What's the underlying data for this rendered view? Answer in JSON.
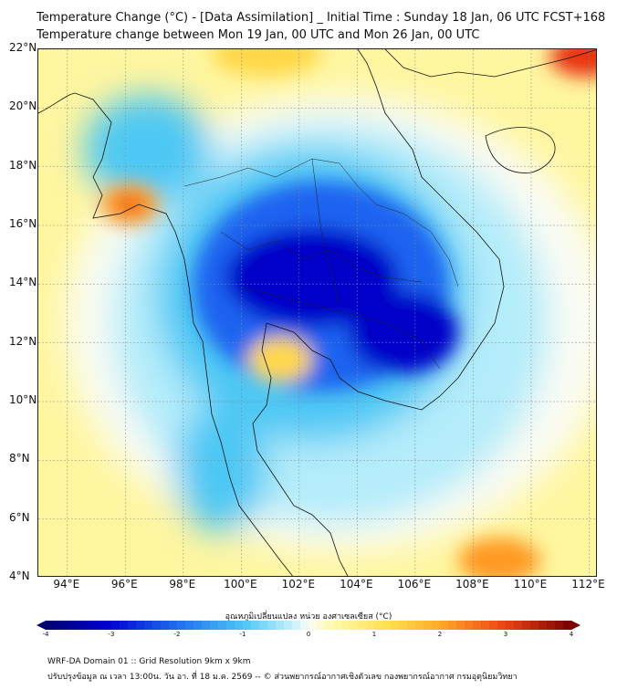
{
  "header": {
    "title_line1": "Temperature Change (°C) - [Data Assimilation] _ Initial Time : Sunday 18 Jan, 06 UTC FCST+168",
    "title_line2": "Temperature change between Mon 19 Jan, 00 UTC and Mon 26 Jan, 00 UTC"
  },
  "map": {
    "lat_labels": [
      "22°N",
      "20°N",
      "18°N",
      "16°N",
      "14°N",
      "12°N",
      "10°N",
      "8°N",
      "6°N",
      "4°N"
    ],
    "lon_labels": [
      "94°E",
      "96°E",
      "98°E",
      "100°E",
      "102°E",
      "104°E",
      "106°E",
      "108°E",
      "110°E",
      "112°E"
    ],
    "lat_range": [
      4,
      22
    ],
    "lon_range": [
      93,
      112.3
    ],
    "colors": {
      "dark_blue": "#0000c8",
      "blue": "#1e64f0",
      "cyan": "#4ec8f4",
      "light_cyan": "#b4ecfa",
      "white": "#fafcf4",
      "light_yellow": "#fff6a0",
      "yellow": "#ffd84a",
      "orange": "#ff9a20",
      "red": "#e83010"
    }
  },
  "colorbar": {
    "title": "อุณหภูมิเปลี่ยนแปลง หน่วย องศาเซลเซียส (°C)",
    "ticks": [
      "-4",
      "-3",
      "-2",
      "-1",
      "0",
      "1",
      "2",
      "3",
      "4"
    ],
    "range": [
      -4,
      4
    ]
  },
  "footer": {
    "line1": "WRF-DA Domain 01 :: Grid Resolution 9km x 9km",
    "line2": "ปรับปรุงข้อมูล ณ เวลา 13:00น. วัน อา. ที่ 18 ม.ค. 2569 -- © ส่วนพยากรณ์อากาศเชิงตัวเลข กองพยากรณ์อากาศ กรมอุตุนิยมวิทยา"
  }
}
